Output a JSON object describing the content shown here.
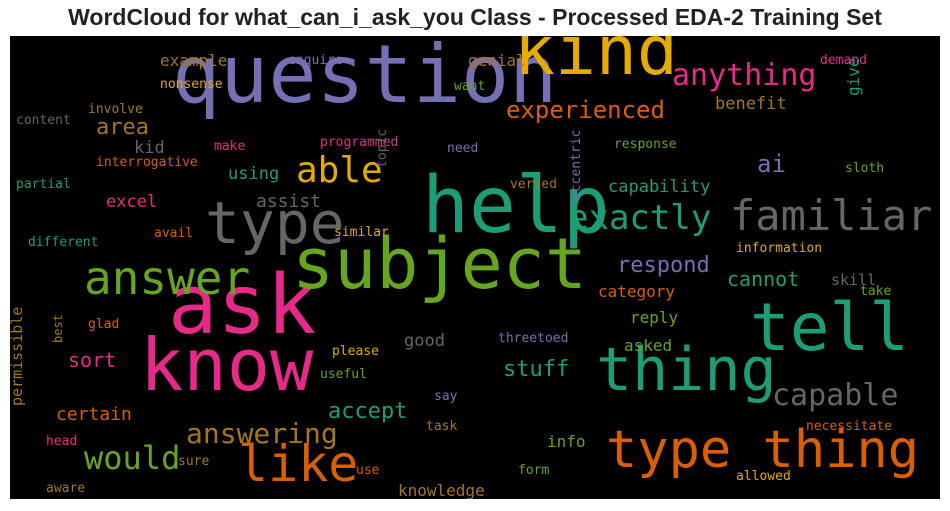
{
  "chart_data": {
    "type": "wordcloud",
    "title": "WordCloud for what_can_i_ask_you Class - Processed EDA-2 Training Set",
    "background": "#000000",
    "words": [
      {
        "text": "question",
        "weight": 80,
        "color": "#7570b3"
      },
      {
        "text": "ask",
        "weight": 82,
        "color": "#e7298a"
      },
      {
        "text": "know",
        "weight": 72,
        "color": "#e7298a"
      },
      {
        "text": "help",
        "weight": 78,
        "color": "#1b9e77"
      },
      {
        "text": "subject",
        "weight": 70,
        "color": "#66a61e"
      },
      {
        "text": "kind",
        "weight": 68,
        "color": "#e6ab02"
      },
      {
        "text": "tell",
        "weight": 66,
        "color": "#1b9e77"
      },
      {
        "text": "thing",
        "weight": 60,
        "color": "#1b9e77"
      },
      {
        "text": "type",
        "weight": 58,
        "color": "#666666"
      },
      {
        "text": "type thing",
        "weight": 52,
        "color": "#d95f02"
      },
      {
        "text": "like",
        "weight": 50,
        "color": "#d95f02"
      },
      {
        "text": "answer",
        "weight": 46,
        "color": "#66a61e"
      },
      {
        "text": "familiar",
        "weight": 42,
        "color": "#666666"
      },
      {
        "text": "exactly",
        "weight": 34,
        "color": "#1b9e77"
      },
      {
        "text": "able",
        "weight": 36,
        "color": "#e6ab02"
      },
      {
        "text": "capable",
        "weight": 30,
        "color": "#666666"
      },
      {
        "text": "anything",
        "weight": 30,
        "color": "#e7298a"
      },
      {
        "text": "would",
        "weight": 32,
        "color": "#66a61e"
      },
      {
        "text": "answering",
        "weight": 28,
        "color": "#a6761d"
      },
      {
        "text": "experienced",
        "weight": 24,
        "color": "#d95f02"
      },
      {
        "text": "ai",
        "weight": 24,
        "color": "#7570b3"
      },
      {
        "text": "respond",
        "weight": 22,
        "color": "#7570b3"
      },
      {
        "text": "accept",
        "weight": 22,
        "color": "#1b9e77"
      },
      {
        "text": "stuff",
        "weight": 22,
        "color": "#1b9e77"
      },
      {
        "text": "area",
        "weight": 22,
        "color": "#a6761d"
      },
      {
        "text": "sort",
        "weight": 20,
        "color": "#e7298a"
      },
      {
        "text": "cannot",
        "weight": 20,
        "color": "#1b9e77"
      },
      {
        "text": "assist",
        "weight": 18,
        "color": "#666666"
      },
      {
        "text": "certain",
        "weight": 18,
        "color": "#d95f02"
      },
      {
        "text": "capability",
        "weight": 17,
        "color": "#1b9e77"
      },
      {
        "text": "benefit",
        "weight": 17,
        "color": "#a6761d"
      },
      {
        "text": "using",
        "weight": 17,
        "color": "#1b9e77"
      },
      {
        "text": "good",
        "weight": 17,
        "color": "#666666"
      },
      {
        "text": "excel",
        "weight": 17,
        "color": "#e7298a"
      },
      {
        "text": "kid",
        "weight": 17,
        "color": "#666666"
      },
      {
        "text": "example",
        "weight": 16,
        "color": "#a6761d"
      },
      {
        "text": "genial",
        "weight": 16,
        "color": "#a6761d"
      },
      {
        "text": "category",
        "weight": 16,
        "color": "#d95f02"
      },
      {
        "text": "reply",
        "weight": 16,
        "color": "#66a61e"
      },
      {
        "text": "asked",
        "weight": 16,
        "color": "#66a61e"
      },
      {
        "text": "knowledge",
        "weight": 16,
        "color": "#a6761d"
      },
      {
        "text": "give",
        "weight": 16,
        "color": "#1b9e77"
      },
      {
        "text": "info",
        "weight": 16,
        "color": "#66a61e"
      },
      {
        "text": "skill",
        "weight": 15,
        "color": "#666666"
      },
      {
        "text": "permissible",
        "weight": 15,
        "color": "#a6761d"
      },
      {
        "text": "enquire",
        "weight": 13,
        "color": "#7570b3"
      },
      {
        "text": "nonsense",
        "weight": 13,
        "color": "#e6ab02"
      },
      {
        "text": "want",
        "weight": 13,
        "color": "#66a61e"
      },
      {
        "text": "demand",
        "weight": 13,
        "color": "#e7298a"
      },
      {
        "text": "involve",
        "weight": 13,
        "color": "#a6761d"
      },
      {
        "text": "content",
        "weight": 13,
        "color": "#666666"
      },
      {
        "text": "programmed",
        "weight": 13,
        "color": "#e7298a"
      },
      {
        "text": "make",
        "weight": 13,
        "color": "#e7298a"
      },
      {
        "text": "need",
        "weight": 13,
        "color": "#7570b3"
      },
      {
        "text": "response",
        "weight": 13,
        "color": "#66a61e"
      },
      {
        "text": "interrogative",
        "weight": 13,
        "color": "#d95f02"
      },
      {
        "text": "topic",
        "weight": 13,
        "color": "#666666"
      },
      {
        "text": "sloth",
        "weight": 13,
        "color": "#66a61e"
      },
      {
        "text": "partial",
        "weight": 13,
        "color": "#1b9e77"
      },
      {
        "text": "versed",
        "weight": 13,
        "color": "#a6761d"
      },
      {
        "text": "avail",
        "weight": 13,
        "color": "#d95f02"
      },
      {
        "text": "similar",
        "weight": 13,
        "color": "#e6ab02"
      },
      {
        "text": "different",
        "weight": 13,
        "color": "#1b9e77"
      },
      {
        "text": "eccentric",
        "weight": 13,
        "color": "#7570b3"
      },
      {
        "text": "information",
        "weight": 13,
        "color": "#e6ab02"
      },
      {
        "text": "take",
        "weight": 13,
        "color": "#66a61e"
      },
      {
        "text": "glad",
        "weight": 13,
        "color": "#d95f02"
      },
      {
        "text": "threetoed",
        "weight": 13,
        "color": "#7570b3"
      },
      {
        "text": "please",
        "weight": 13,
        "color": "#e6ab02"
      },
      {
        "text": "best",
        "weight": 12,
        "color": "#a6761d"
      },
      {
        "text": "useful",
        "weight": 13,
        "color": "#66a61e"
      },
      {
        "text": "say",
        "weight": 13,
        "color": "#7570b3"
      },
      {
        "text": "task",
        "weight": 13,
        "color": "#a6761d"
      },
      {
        "text": "necessitate",
        "weight": 13,
        "color": "#d95f02"
      },
      {
        "text": "head",
        "weight": 13,
        "color": "#e7298a"
      },
      {
        "text": "sure",
        "weight": 13,
        "color": "#a6761d"
      },
      {
        "text": "use",
        "weight": 13,
        "color": "#d95f02"
      },
      {
        "text": "form",
        "weight": 13,
        "color": "#66a61e"
      },
      {
        "text": "allowed",
        "weight": 13,
        "color": "#e6ab02"
      },
      {
        "text": "aware",
        "weight": 13,
        "color": "#a6761d"
      }
    ]
  }
}
